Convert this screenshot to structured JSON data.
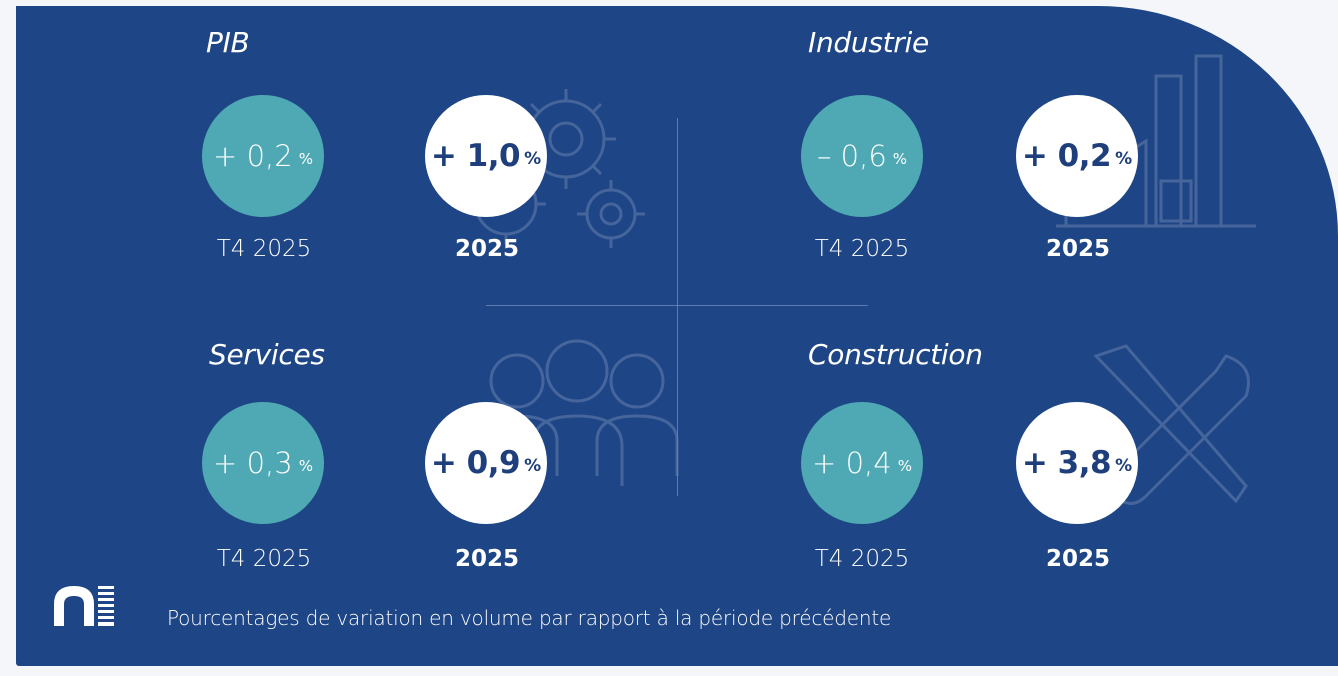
{
  "quadrants": {
    "pib": {
      "title": "PIB",
      "quarter": {
        "value": "+ 0,2",
        "unit": "%",
        "label": "T4 2025"
      },
      "year": {
        "value": "+ 1,0",
        "unit": "%",
        "label": "2025"
      }
    },
    "industrie": {
      "title": "Industrie",
      "quarter": {
        "value": "– 0,6",
        "unit": "%",
        "label": "T4 2025"
      },
      "year": {
        "value": "+ 0,2",
        "unit": "%",
        "label": "2025"
      }
    },
    "services": {
      "title": "Services",
      "quarter": {
        "value": "+ 0,3",
        "unit": "%",
        "label": "T4 2025"
      },
      "year": {
        "value": "+ 0,9",
        "unit": "%",
        "label": "2025"
      }
    },
    "construction": {
      "title": "Construction",
      "quarter": {
        "value": "+ 0,4",
        "unit": "%",
        "label": "T4 2025"
      },
      "year": {
        "value": "+ 3,8",
        "unit": "%",
        "label": "2025"
      }
    }
  },
  "footnote": "Pourcentages de variation en volume par rapport à la période précédente",
  "colors": {
    "background": "#1e4585",
    "quarter_circle": "#4fa9b4",
    "year_circle": "#ffffff",
    "year_text": "#1e3f7b"
  },
  "icons": [
    "gears-icon",
    "factory-icon",
    "people-icon",
    "tools-icon",
    "logo-icon"
  ]
}
